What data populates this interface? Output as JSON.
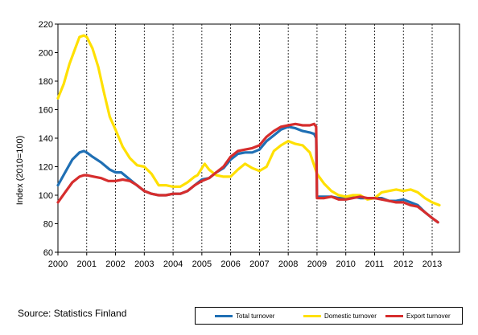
{
  "chart_data": {
    "type": "line",
    "title": "",
    "ylabel": "Index (2010=100)",
    "xlabel": "",
    "xlim": [
      2000,
      2013.95
    ],
    "ylim": [
      60,
      220
    ],
    "yticks": [
      60,
      80,
      100,
      120,
      140,
      160,
      180,
      200,
      220
    ],
    "xticks": [
      "2000",
      "2001",
      "2002",
      "2003",
      "2004",
      "2005",
      "2006",
      "2007",
      "2008",
      "2009",
      "2010",
      "2011",
      "2012",
      "2013"
    ],
    "grid": "vertical dashed at year boundaries",
    "legend_position": "bottom-right",
    "series": [
      {
        "name": "Total turnover",
        "color": "#1f6fb4",
        "x": [
          2000.0,
          2000.25,
          2000.5,
          2000.75,
          2000.9,
          2001.0,
          2001.2,
          2001.5,
          2001.8,
          2002.0,
          2002.2,
          2002.5,
          2002.8,
          2003.0,
          2003.25,
          2003.5,
          2003.75,
          2004.0,
          2004.25,
          2004.5,
          2004.75,
          2005.0,
          2005.25,
          2005.5,
          2005.75,
          2006.0,
          2006.25,
          2006.5,
          2006.75,
          2007.0,
          2007.25,
          2007.5,
          2007.75,
          2008.0,
          2008.25,
          2008.5,
          2008.75,
          2008.9,
          2008.97,
          2009.0,
          2009.25,
          2009.5,
          2009.75,
          2010.0,
          2010.25,
          2010.5,
          2010.75,
          2011.0,
          2011.25,
          2011.5,
          2011.75,
          2012.0,
          2012.25,
          2012.5,
          2012.75,
          2013.0,
          2013.2
        ],
        "values": [
          107,
          116,
          125,
          130,
          131,
          130,
          127,
          123,
          118,
          116,
          116,
          111,
          106,
          103,
          101,
          100,
          100,
          101,
          101,
          103,
          107,
          111,
          112,
          116,
          119,
          125,
          129,
          130,
          130,
          132,
          138,
          142,
          146,
          148,
          147,
          145,
          144,
          143,
          140,
          99,
          99,
          99,
          98,
          98,
          99,
          98,
          98,
          98,
          98,
          96,
          96,
          97,
          95,
          93,
          88,
          84,
          81
        ]
      },
      {
        "name": "Domestic turnover",
        "color": "#ffe000",
        "x": [
          2000.0,
          2000.2,
          2000.4,
          2000.6,
          2000.75,
          2000.9,
          2001.0,
          2001.2,
          2001.4,
          2001.6,
          2001.8,
          2002.0,
          2002.25,
          2002.5,
          2002.75,
          2003.0,
          2003.25,
          2003.5,
          2003.75,
          2004.0,
          2004.25,
          2004.5,
          2004.75,
          2004.85,
          2005.0,
          2005.1,
          2005.25,
          2005.5,
          2005.75,
          2006.0,
          2006.25,
          2006.5,
          2006.75,
          2007.0,
          2007.25,
          2007.5,
          2007.75,
          2008.0,
          2008.25,
          2008.5,
          2008.75,
          2009.0,
          2009.25,
          2009.5,
          2009.75,
          2010.0,
          2010.25,
          2010.5,
          2010.75,
          2011.0,
          2011.25,
          2011.5,
          2011.75,
          2012.0,
          2012.25,
          2012.5,
          2012.75,
          2013.0,
          2013.25
        ],
        "values": [
          168,
          178,
          192,
          203,
          211,
          212,
          211,
          203,
          190,
          172,
          155,
          146,
          134,
          126,
          121,
          120,
          115,
          107,
          107,
          106,
          106,
          109,
          113,
          114,
          119,
          122,
          118,
          114,
          113,
          113,
          118,
          122,
          119,
          117,
          120,
          131,
          135,
          138,
          136,
          135,
          130,
          115,
          108,
          103,
          100,
          99,
          100,
          100,
          97,
          98,
          102,
          103,
          104,
          103,
          104,
          102,
          98,
          95,
          93
        ]
      },
      {
        "name": "Export turnover",
        "color": "#d62d2d",
        "x": [
          2000.0,
          2000.25,
          2000.5,
          2000.75,
          2000.9,
          2001.0,
          2001.25,
          2001.5,
          2001.75,
          2002.0,
          2002.25,
          2002.5,
          2002.75,
          2003.0,
          2003.25,
          2003.5,
          2003.75,
          2004.0,
          2004.25,
          2004.5,
          2004.75,
          2005.0,
          2005.25,
          2005.5,
          2005.75,
          2006.0,
          2006.25,
          2006.5,
          2006.75,
          2007.0,
          2007.25,
          2007.5,
          2007.75,
          2008.0,
          2008.25,
          2008.5,
          2008.75,
          2008.9,
          2008.97,
          2009.0,
          2009.25,
          2009.5,
          2009.75,
          2010.0,
          2010.25,
          2010.5,
          2010.75,
          2011.0,
          2011.25,
          2011.5,
          2011.75,
          2012.0,
          2012.25,
          2012.5,
          2012.75,
          2013.0,
          2013.2
        ],
        "values": [
          95,
          102,
          109,
          113,
          114,
          114,
          113,
          112,
          110,
          110,
          111,
          110,
          107,
          103,
          101,
          100,
          100,
          101,
          101,
          103,
          107,
          110,
          112,
          116,
          120,
          127,
          131,
          132,
          133,
          135,
          141,
          145,
          148,
          149,
          150,
          149,
          149,
          150,
          148,
          98,
          98,
          99,
          97,
          97,
          98,
          99,
          98,
          98,
          97,
          96,
          95,
          95,
          93,
          92,
          88,
          84,
          81
        ]
      }
    ]
  },
  "footer": {
    "source": "Source: Statistics Finland"
  },
  "legend": {
    "items": [
      {
        "label": "Total turnover",
        "color": "#1f6fb4"
      },
      {
        "label": "Domestic turnover",
        "color": "#ffe000"
      },
      {
        "label": "Export turnover",
        "color": "#d62d2d"
      }
    ]
  }
}
